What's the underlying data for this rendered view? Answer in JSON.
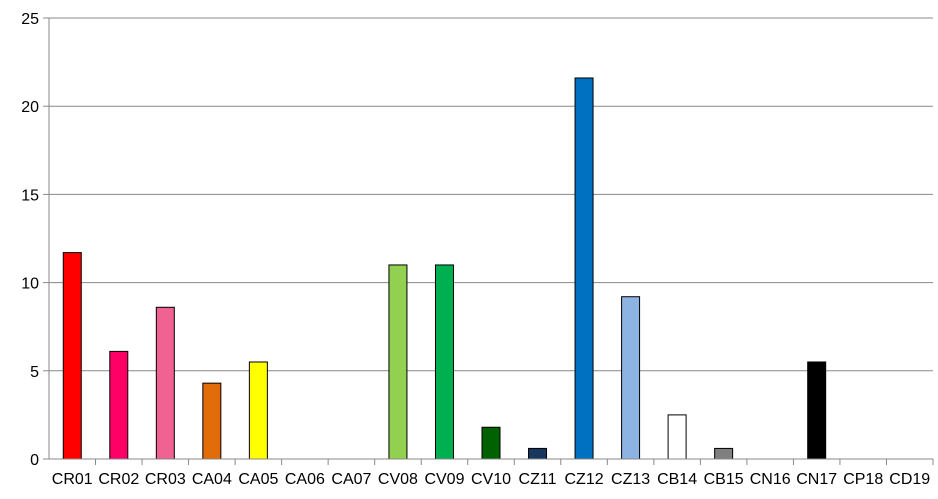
{
  "chart_data": {
    "type": "bar",
    "title": "",
    "xlabel": "",
    "ylabel": "",
    "ylim": [
      0,
      25
    ],
    "yticks": [
      0,
      5,
      10,
      15,
      20,
      25
    ],
    "grid": true,
    "legend": "none",
    "categories": [
      "CR01",
      "CR02",
      "CR03",
      "CA04",
      "CA05",
      "CA06",
      "CA07",
      "CV08",
      "CV09",
      "CV10",
      "CZ11",
      "CZ12",
      "CZ13",
      "CB14",
      "CB15",
      "CN16",
      "CN17",
      "CP18",
      "CD19"
    ],
    "values": [
      11.7,
      6.1,
      8.6,
      4.3,
      5.5,
      0,
      0,
      11.0,
      11.0,
      1.8,
      0.6,
      21.6,
      9.2,
      2.5,
      0.6,
      0,
      5.5,
      0,
      0
    ],
    "colors": [
      "#ff0000",
      "#ff0066",
      "#f06292",
      "#e36c0a",
      "#ffff00",
      "#ffffff",
      "#ffffff",
      "#92d050",
      "#00b050",
      "#006100",
      "#17375e",
      "#0070c0",
      "#8db3e2",
      "#ffffff",
      "#7f7f7f",
      "#ffffff",
      "#000000",
      "#ffffff",
      "#ffffff"
    ]
  }
}
